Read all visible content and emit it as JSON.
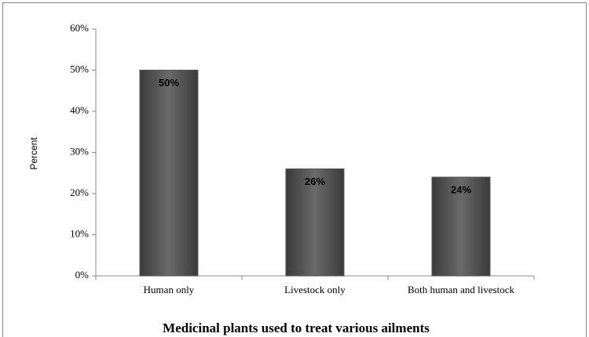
{
  "chart_data": {
    "type": "bar",
    "title": "Medicinal plants used to treat various ailments",
    "y_label": "Percent",
    "categories": [
      "Human only",
      "Livestock only",
      "Both human and livestock"
    ],
    "values": [
      50,
      26,
      24
    ],
    "value_labels": [
      "50%",
      "26%",
      "24%"
    ],
    "color": "#555555",
    "ylim": [
      0,
      60
    ],
    "yticks": [
      {
        "value": 0,
        "label": "0%"
      },
      {
        "value": 10,
        "label": "10%"
      },
      {
        "value": 20,
        "label": "20%"
      },
      {
        "value": 30,
        "label": "30%"
      },
      {
        "value": 40,
        "label": "40%"
      },
      {
        "value": 50,
        "label": "50%"
      },
      {
        "value": 60,
        "label": "60%"
      }
    ],
    "grid": false
  }
}
